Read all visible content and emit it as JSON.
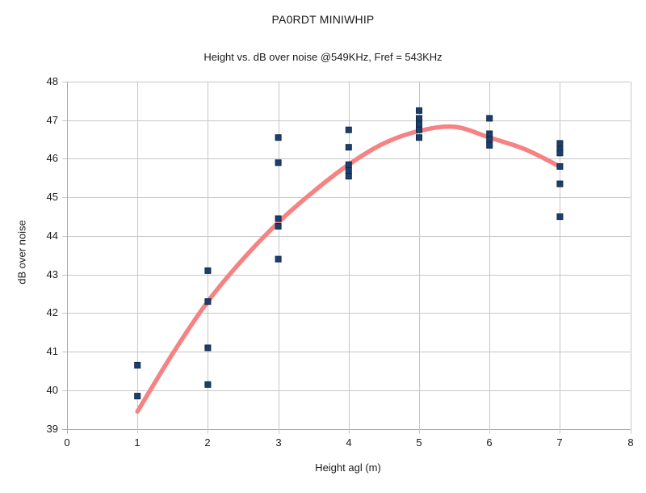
{
  "chart_data": {
    "type": "scatter",
    "title": "PA0RDT MINIWHIP",
    "subtitle": "Height vs. dB over noise @549KHz, Fref = 543KHz",
    "xlabel": "Height agl (m)",
    "ylabel": "dB over noise",
    "xlim": [
      0,
      8
    ],
    "ylim": [
      39,
      48
    ],
    "xticks": [
      0,
      1,
      2,
      3,
      4,
      5,
      6,
      7,
      8
    ],
    "yticks": [
      39,
      40,
      41,
      42,
      43,
      44,
      45,
      46,
      47,
      48
    ],
    "grid": true,
    "legend": "none",
    "colors": {
      "point": "#1d3f6e",
      "point_border": "#10294a",
      "trend": "#f58383",
      "gridline": "#c6c6c6",
      "axis": "#a8a8a8",
      "text": "#1a1a1a"
    },
    "points": [
      [
        1,
        40.65
      ],
      [
        1,
        39.85
      ],
      [
        2,
        43.1
      ],
      [
        2,
        42.3
      ],
      [
        2,
        41.1
      ],
      [
        2,
        40.15
      ],
      [
        3,
        46.55
      ],
      [
        3,
        45.9
      ],
      [
        3,
        44.45
      ],
      [
        3,
        44.25
      ],
      [
        3,
        43.4
      ],
      [
        4,
        46.75
      ],
      [
        4,
        46.3
      ],
      [
        4,
        45.85
      ],
      [
        4,
        45.7
      ],
      [
        4,
        45.55
      ],
      [
        5,
        47.25
      ],
      [
        5,
        47.05
      ],
      [
        5,
        46.9
      ],
      [
        5,
        46.75
      ],
      [
        5,
        46.55
      ],
      [
        6,
        47.05
      ],
      [
        6,
        46.65
      ],
      [
        6,
        46.5
      ],
      [
        6,
        46.35
      ],
      [
        7,
        46.4
      ],
      [
        7,
        46.25
      ],
      [
        7,
        46.15
      ],
      [
        7,
        45.8
      ],
      [
        7,
        45.35
      ],
      [
        7,
        44.5
      ]
    ],
    "trend_curve": {
      "description": "polynomial fit line",
      "samples": [
        [
          1.0,
          39.45
        ],
        [
          1.5,
          40.95
        ],
        [
          2.0,
          42.3
        ],
        [
          2.5,
          43.4
        ],
        [
          3.0,
          44.35
        ],
        [
          3.5,
          45.15
        ],
        [
          4.0,
          45.85
        ],
        [
          4.5,
          46.4
        ],
        [
          5.0,
          46.72
        ],
        [
          5.5,
          46.83
        ],
        [
          6.0,
          46.55
        ],
        [
          6.5,
          46.25
        ],
        [
          7.0,
          45.8
        ]
      ]
    }
  }
}
